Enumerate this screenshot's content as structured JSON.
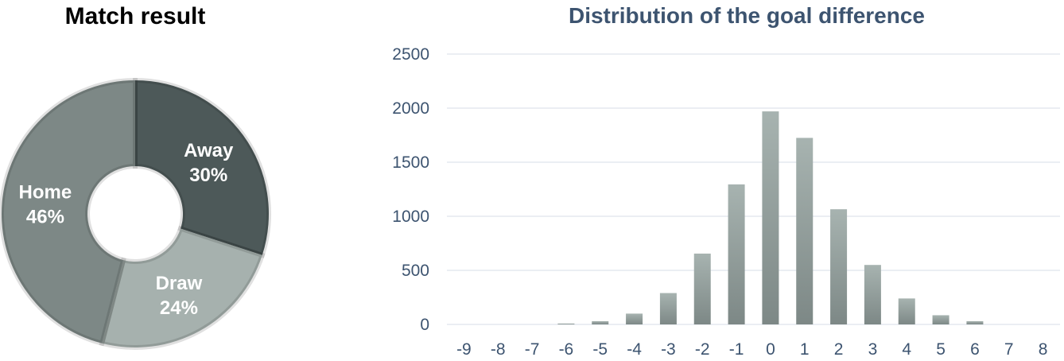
{
  "chart_data": [
    {
      "type": "pie",
      "subtype": "donut",
      "title": "Match result",
      "slices": [
        {
          "label": "Away",
          "value": 30,
          "value_label": "30%",
          "color": "#4d5959"
        },
        {
          "label": "Draw",
          "value": 24,
          "value_label": "24%",
          "color": "#a6b1ae"
        },
        {
          "label": "Home",
          "value": 46,
          "value_label": "46%",
          "color": "#7d8886"
        }
      ],
      "start_at": "top",
      "direction": "clockwise"
    },
    {
      "type": "bar",
      "title": "Distribution of the goal difference",
      "xlabel": "",
      "ylabel": "",
      "categories": [
        "-9",
        "-8",
        "-7",
        "-6",
        "-5",
        "-4",
        "-3",
        "-2",
        "-1",
        "0",
        "1",
        "2",
        "3",
        "4",
        "5",
        "6",
        "7",
        "8"
      ],
      "values": [
        0,
        0,
        0,
        8,
        30,
        100,
        290,
        655,
        1295,
        1970,
        1725,
        1065,
        550,
        240,
        85,
        30,
        0,
        0
      ],
      "ylim": [
        0,
        2500
      ],
      "yticks": [
        "0",
        "500",
        "1000",
        "1500",
        "2000",
        "2500"
      ],
      "grid": true,
      "legend": "none",
      "bar_color_top": "#a7b3b0",
      "bar_color_bottom": "#7d8886",
      "title_color": "#3d5470"
    }
  ]
}
